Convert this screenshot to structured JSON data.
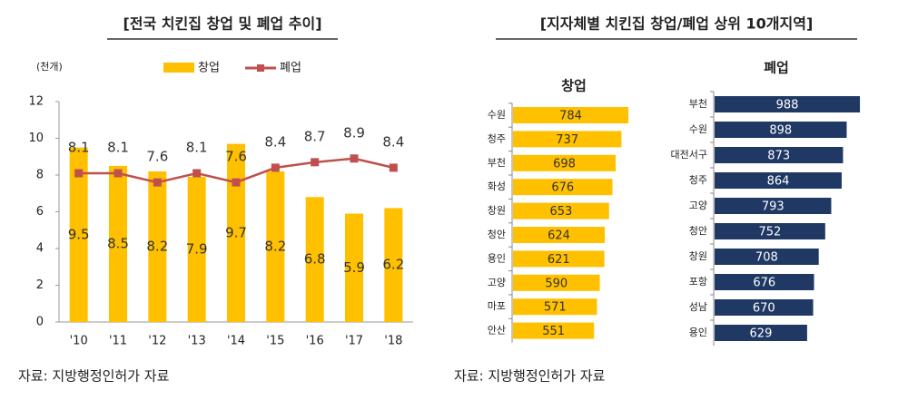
{
  "chart_data": [
    {
      "type": "combo",
      "title": "[전국 치킨집 창업 및 폐업 추이]",
      "unit_label": "(천개)",
      "categories": [
        "'10",
        "'11",
        "'12",
        "'13",
        "'14",
        "'15",
        "'16",
        "'17",
        "'18"
      ],
      "series": [
        {
          "name": "창업",
          "type": "bar",
          "color": "#FFC000",
          "values": [
            9.5,
            8.5,
            8.2,
            7.9,
            9.7,
            8.2,
            6.8,
            5.9,
            6.2
          ]
        },
        {
          "name": "폐업",
          "type": "line",
          "color": "#C0504D",
          "values": [
            8.1,
            8.1,
            7.6,
            8.1,
            7.6,
            8.4,
            8.7,
            8.9,
            8.4
          ]
        }
      ],
      "ylim": [
        0,
        12
      ],
      "yticks": [
        0,
        2,
        4,
        6,
        8,
        10,
        12
      ],
      "source": "자료: 지방행정인허가 자료"
    },
    {
      "type": "hbar-panels",
      "title": "[지자체별 치킨집 창업/폐업 상위 10개지역]",
      "panels": [
        {
          "name": "창업",
          "color": "#FFC000",
          "categories": [
            "수원",
            "청주",
            "부천",
            "화성",
            "창원",
            "청안",
            "용인",
            "고양",
            "마포",
            "안산"
          ],
          "values": [
            784,
            737,
            698,
            676,
            653,
            624,
            621,
            590,
            571,
            551
          ]
        },
        {
          "name": "폐업",
          "color": "#1F3864",
          "categories": [
            "부천",
            "수원",
            "대전서구",
            "청주",
            "고양",
            "청안",
            "창원",
            "포항",
            "성남",
            "용인"
          ],
          "values": [
            988,
            898,
            873,
            864,
            793,
            752,
            708,
            676,
            670,
            629
          ]
        }
      ],
      "source": "자료: 지방행정인허가 자료"
    }
  ]
}
